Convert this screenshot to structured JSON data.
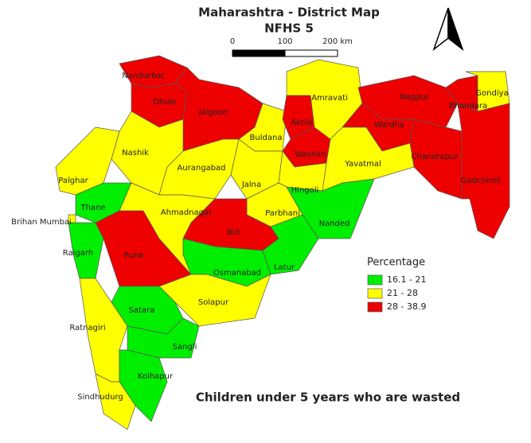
{
  "title": "Maharashtra - District Map",
  "subtitle": "NFHS 5",
  "scale_bar": {
    "labels": [
      "0",
      "100",
      "200 km"
    ]
  },
  "caption": "Children under 5 years who are wasted",
  "legend": {
    "title": "Percentage",
    "items": [
      {
        "label": "16.1 - 21",
        "color": "#00ee00"
      },
      {
        "label": "21 - 28",
        "color": "#ffff00"
      },
      {
        "label": "28 - 38.9",
        "color": "#ee0000"
      }
    ]
  },
  "districts": [
    {
      "name": "Nandurbar",
      "color": "#ee0000"
    },
    {
      "name": "Dhule",
      "color": "#ee0000"
    },
    {
      "name": "Jalgaon",
      "color": "#ee0000"
    },
    {
      "name": "Buldana",
      "color": "#ffff00"
    },
    {
      "name": "Akola",
      "color": "#ee0000"
    },
    {
      "name": "Washim",
      "color": "#ee0000"
    },
    {
      "name": "Amravati",
      "color": "#ffff00"
    },
    {
      "name": "Nagpur",
      "color": "#ee0000"
    },
    {
      "name": "Bhandara",
      "color": "#ee0000"
    },
    {
      "name": "Gondiya",
      "color": "#ffff00"
    },
    {
      "name": "Wardha",
      "color": "#ee0000"
    },
    {
      "name": "Chandrapur",
      "color": "#ee0000"
    },
    {
      "name": "Gadchiroli",
      "color": "#ee0000"
    },
    {
      "name": "Yavatmal",
      "color": "#ffff00"
    },
    {
      "name": "Nashik",
      "color": "#ffff00"
    },
    {
      "name": "Palghar",
      "color": "#ffff00"
    },
    {
      "name": "Thane",
      "color": "#00ee00"
    },
    {
      "name": "Brihan Mumbai",
      "color": "#ffff00"
    },
    {
      "name": "Raigarh",
      "color": "#00ee00"
    },
    {
      "name": "Pune",
      "color": "#ee0000"
    },
    {
      "name": "Aurangabad",
      "color": "#ffff00"
    },
    {
      "name": "Jalna",
      "color": "#ffff00"
    },
    {
      "name": "Hingoli",
      "color": "#ffff00"
    },
    {
      "name": "Parbhani",
      "color": "#ffff00"
    },
    {
      "name": "Nanded",
      "color": "#00ee00"
    },
    {
      "name": "Ahmadnagar",
      "color": "#ffff00"
    },
    {
      "name": "Bid",
      "color": "#ee0000"
    },
    {
      "name": "Latur",
      "color": "#00ee00"
    },
    {
      "name": "Osmanabad",
      "color": "#00ee00"
    },
    {
      "name": "Solapur",
      "color": "#ffff00"
    },
    {
      "name": "Satara",
      "color": "#00ee00"
    },
    {
      "name": "Ratnagiri",
      "color": "#ffff00"
    },
    {
      "name": "Sangli",
      "color": "#00ee00"
    },
    {
      "name": "Kolhapur",
      "color": "#00ee00"
    },
    {
      "name": "Sindhudurg",
      "color": "#ffff00"
    }
  ]
}
